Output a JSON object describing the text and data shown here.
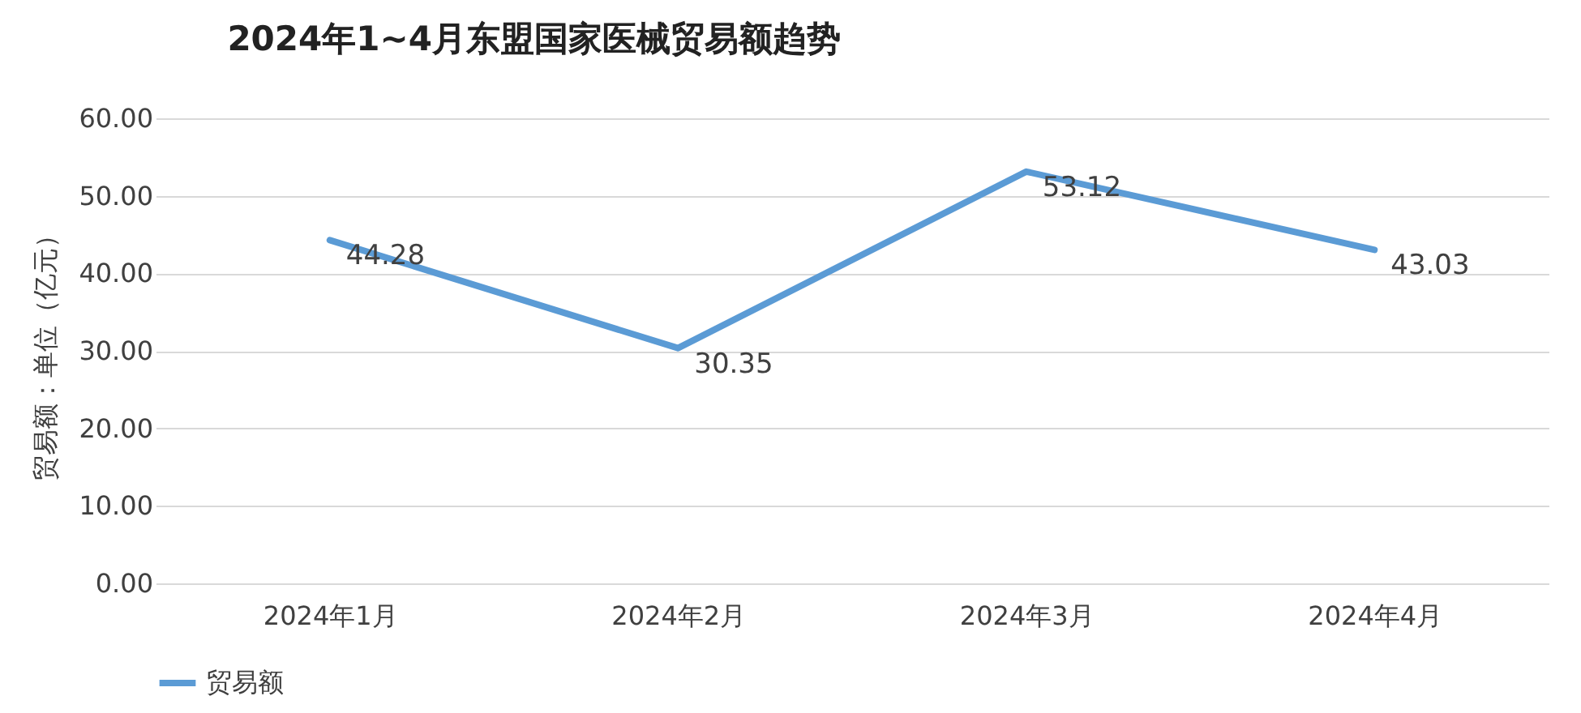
{
  "chart_data": {
    "type": "line",
    "title": "2024年1~4月东盟国家医械贸易额趋势",
    "ylabel": "贸易额：单位（亿元）",
    "categories": [
      "2024年1月",
      "2024年2月",
      "2024年3月",
      "2024年4月"
    ],
    "series": [
      {
        "name": "贸易额",
        "color": "#5b9bd5",
        "values": [
          44.28,
          30.35,
          53.12,
          43.03
        ]
      }
    ],
    "ylim": [
      0,
      60
    ],
    "yticks": [
      {
        "value": 0,
        "label": "0.00"
      },
      {
        "value": 10,
        "label": "10.00"
      },
      {
        "value": 20,
        "label": "20.00"
      },
      {
        "value": 30,
        "label": "30.00"
      },
      {
        "value": 40,
        "label": "40.00"
      },
      {
        "value": 50,
        "label": "50.00"
      },
      {
        "value": 60,
        "label": "60.00"
      }
    ],
    "grid": "y",
    "legend": "bottom",
    "data_labels": true,
    "marker": "none",
    "line_style": "solid"
  }
}
